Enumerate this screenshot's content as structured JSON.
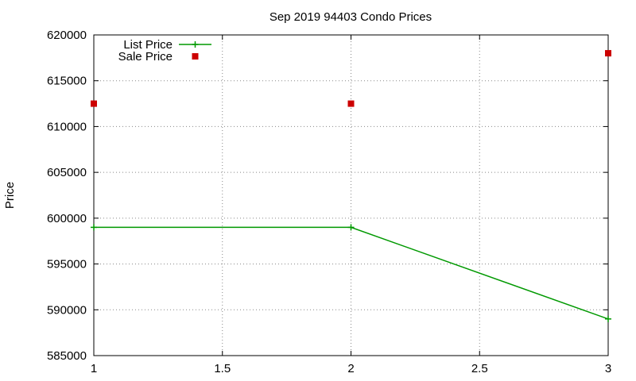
{
  "chart_data": {
    "type": "line",
    "title": "Sep 2019 94403 Condo Prices",
    "xlabel": "",
    "ylabel": "Price",
    "xlim": [
      1,
      3
    ],
    "ylim": [
      585000,
      620000
    ],
    "x_ticks": [
      1,
      1.5,
      2,
      2.5,
      3
    ],
    "x_tick_labels": [
      "1",
      "1.5",
      "2",
      "2.5",
      "3"
    ],
    "y_ticks": [
      585000,
      590000,
      595000,
      600000,
      605000,
      610000,
      615000,
      620000
    ],
    "y_tick_labels": [
      "585000",
      "590000",
      "595000",
      "600000",
      "605000",
      "610000",
      "615000",
      "620000"
    ],
    "grid": true,
    "legend_position": "top-left",
    "series": [
      {
        "name": "List Price",
        "style": "line-with-plus-markers",
        "color": "#009900",
        "x": [
          1,
          2,
          3
        ],
        "y": [
          599000,
          599000,
          589000
        ]
      },
      {
        "name": "Sale Price",
        "style": "square-points",
        "color": "#cc0000",
        "x": [
          1,
          2,
          3
        ],
        "y": [
          612500,
          612500,
          618000
        ]
      }
    ]
  }
}
